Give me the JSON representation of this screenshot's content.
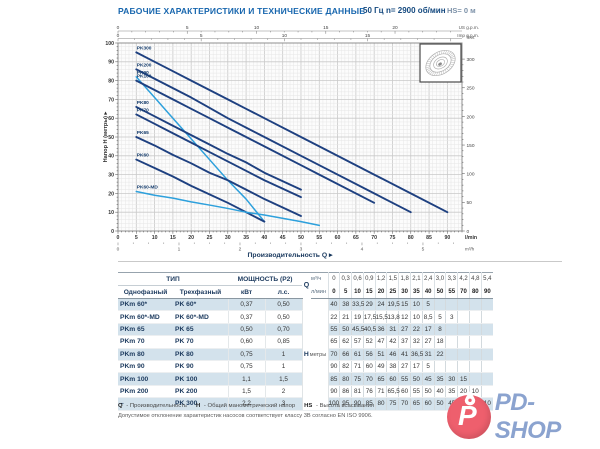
{
  "header": {
    "title": "РАБОЧИЕ ХАРАКТЕРИСТИКИ И ТЕХНИЧЕСКИЕ ДАННЫЕ",
    "frequency": "50 Гц",
    "speed": "n= 2900 об/мин",
    "suction": "HS= 0 м"
  },
  "colors": {
    "accent_blue": "#1766ae",
    "curve_dark": "#1e4080",
    "curve_light": "#2da0dc",
    "row_shade": "#d3e2ec",
    "logo_red": "#ee5f6d",
    "logo_text_blue": "#8ba3cf"
  },
  "chart_data": {
    "type": "line",
    "xlabel": "Производительность Q  ▸",
    "ylabel": "Напор H (метры)  ▸",
    "x_unit": "l/min",
    "x2_unit": "m³/h",
    "top_unit_us": "US g.p.m.",
    "top_unit_imp": "Imp g.p.m.",
    "right_unit": "feet",
    "xlim": [
      0,
      94
    ],
    "ylim": [
      0,
      100
    ],
    "grid": "on",
    "x_ticks_lmin": [
      0,
      5,
      10,
      15,
      20,
      25,
      30,
      35,
      40,
      45,
      50,
      55,
      60,
      65,
      70,
      75,
      80,
      85,
      90
    ],
    "x_ticks_m3h": [
      0,
      1,
      2,
      3,
      4,
      5
    ],
    "us_gpm_ticks": [
      0,
      5,
      10,
      15,
      20
    ],
    "imp_gpm_ticks": [
      0,
      5,
      10,
      15
    ],
    "feet_ticks": [
      0,
      50,
      100,
      150,
      200,
      250,
      300
    ],
    "y_ticks": [
      0,
      10,
      20,
      30,
      40,
      50,
      60,
      70,
      80,
      90,
      100
    ],
    "x_lmin": [
      0,
      5,
      10,
      15,
      20,
      25,
      30,
      35,
      40,
      50,
      55,
      70,
      80,
      90
    ],
    "series": [
      {
        "name": "PK300",
        "color": "dark",
        "values": [
          100,
          95,
          90,
          85,
          80,
          75,
          70,
          65,
          60,
          50,
          45,
          30,
          20,
          10
        ]
      },
      {
        "name": "PK200",
        "color": "dark",
        "values": [
          90,
          86,
          81,
          76,
          71,
          65.5,
          60,
          55,
          50,
          40,
          35,
          20,
          10,
          null
        ]
      },
      {
        "name": "PK90",
        "color": "light",
        "values": [
          90,
          82,
          71,
          60,
          49,
          38,
          27,
          17,
          5,
          null,
          null,
          null,
          null,
          null
        ]
      },
      {
        "name": "PK100",
        "color": "dark",
        "values": [
          85,
          80,
          75,
          70,
          65,
          60,
          55,
          50,
          45,
          35,
          30,
          15,
          null,
          null
        ]
      },
      {
        "name": "PK80",
        "color": "dark",
        "values": [
          70,
          66,
          61,
          56,
          51,
          46,
          41,
          36.5,
          31,
          22,
          null,
          null,
          null,
          null
        ]
      },
      {
        "name": "PK70",
        "color": "dark",
        "values": [
          65,
          62,
          57,
          52,
          47,
          42,
          37,
          32,
          27,
          18,
          null,
          null,
          null,
          null
        ]
      },
      {
        "name": "PK65",
        "color": "dark",
        "values": [
          55,
          50,
          45.5,
          40.5,
          36,
          31,
          27,
          22,
          17,
          8,
          null,
          null,
          null,
          null
        ]
      },
      {
        "name": "PK60",
        "color": "dark",
        "values": [
          40,
          38,
          33.5,
          29,
          24,
          19.5,
          15,
          10,
          5,
          null,
          null,
          null,
          null,
          null
        ]
      },
      {
        "name": "PK60-MD",
        "color": "light",
        "values": [
          22,
          21,
          19,
          17.5,
          15.5,
          13.8,
          12,
          10,
          8.5,
          5,
          3,
          null,
          null,
          null
        ]
      }
    ]
  },
  "table": {
    "type_header": "ТИП",
    "power_header": "МОЩНОСТЬ (P2)",
    "col_single": "Однофазный",
    "col_three": "Трехфазный",
    "col_kw": "кВт",
    "col_hp": "л.с.",
    "q_label": "Q",
    "q_unit_top": "м³/ч",
    "q_unit_bottom": "л/мин",
    "h_label": "H",
    "h_unit": "метры",
    "m3h": [
      "0",
      "0,3",
      "0,6",
      "0,9",
      "1,2",
      "1,5",
      "1,8",
      "2,1",
      "2,4",
      "3,0",
      "3,3",
      "4,2",
      "4,8",
      "5,4"
    ],
    "lmin": [
      "0",
      "5",
      "10",
      "15",
      "20",
      "25",
      "30",
      "35",
      "40",
      "50",
      "55",
      "70",
      "80",
      "90"
    ],
    "rows": [
      {
        "single": "PKm 60*",
        "three": "PK 60*",
        "kw": "0,37",
        "hp": "0,50",
        "h": [
          "40",
          "38",
          "33,5",
          "29",
          "24",
          "19,5",
          "15",
          "10",
          "5",
          "",
          "",
          "",
          "",
          ""
        ]
      },
      {
        "single": "PKm 60*-MD",
        "three": "PK 60*-MD",
        "kw": "0,37",
        "hp": "0,50",
        "h": [
          "22",
          "21",
          "19",
          "17,5",
          "15,5",
          "13,8",
          "12",
          "10",
          "8,5",
          "5",
          "3",
          "",
          "",
          ""
        ]
      },
      {
        "single": "PKm 65",
        "three": "PK 65",
        "kw": "0,50",
        "hp": "0,70",
        "h": [
          "55",
          "50",
          "45,5",
          "40,5",
          "36",
          "31",
          "27",
          "22",
          "17",
          "8",
          "",
          "",
          "",
          ""
        ]
      },
      {
        "single": "PKm 70",
        "three": "PK 70",
        "kw": "0,60",
        "hp": "0,85",
        "h": [
          "65",
          "62",
          "57",
          "52",
          "47",
          "42",
          "37",
          "32",
          "27",
          "18",
          "",
          "",
          "",
          ""
        ]
      },
      {
        "single": "PKm 80",
        "three": "PK 80",
        "kw": "0,75",
        "hp": "1",
        "h": [
          "70",
          "66",
          "61",
          "56",
          "51",
          "46",
          "41",
          "36,5",
          "31",
          "22",
          "",
          "",
          "",
          ""
        ]
      },
      {
        "single": "PKm 90",
        "three": "PK 90",
        "kw": "0,75",
        "hp": "1",
        "h": [
          "90",
          "82",
          "71",
          "60",
          "49",
          "38",
          "27",
          "17",
          "5",
          "",
          "",
          "",
          "",
          ""
        ]
      },
      {
        "single": "PKm 100",
        "three": "PK 100",
        "kw": "1,1",
        "hp": "1,5",
        "h": [
          "85",
          "80",
          "75",
          "70",
          "65",
          "60",
          "55",
          "50",
          "45",
          "35",
          "30",
          "15",
          "",
          ""
        ]
      },
      {
        "single": "PKm 200",
        "three": "PK 200",
        "kw": "1,5",
        "hp": "2",
        "h": [
          "90",
          "86",
          "81",
          "76",
          "71",
          "65,5",
          "60",
          "55",
          "50",
          "40",
          "35",
          "20",
          "10",
          ""
        ]
      },
      {
        "single": "–",
        "three": "PK 300",
        "kw": "2,2",
        "hp": "3",
        "h": [
          "100",
          "95",
          "90",
          "85",
          "80",
          "75",
          "70",
          "65",
          "60",
          "50",
          "45",
          "30",
          "20",
          "10"
        ]
      }
    ]
  },
  "footnotes": {
    "legend": [
      {
        "key": "Q",
        "text": "- Производительность"
      },
      {
        "key": "H",
        "text": "- Общий манометрический напор"
      },
      {
        "key": "HS",
        "text": "- Высота всасывания"
      }
    ],
    "tolerance": "Допустимое отклонение характеристик насосов соответствует классу 3B согласно EN ISO 9906."
  },
  "logo": {
    "text": "PD-SHOP",
    "mark_letter": "P"
  }
}
